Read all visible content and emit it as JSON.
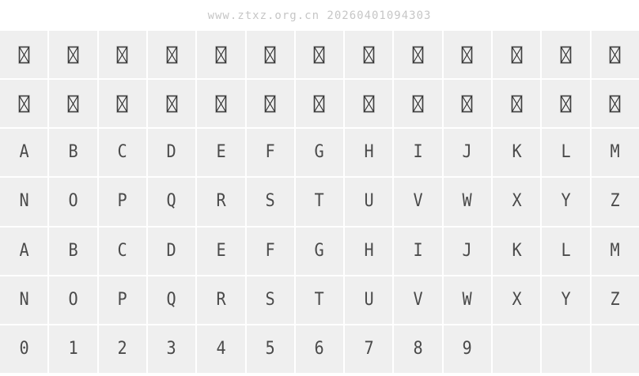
{
  "header": {
    "watermark": "www.ztxz.org.cn 20260401094303"
  },
  "colors": {
    "page_bg": "#ffffff",
    "cell_bg": "#efefef",
    "glyph": "#4a4a4a",
    "watermark": "#c6c6c6",
    "notdef_frame": "#8f8f8f",
    "notdef_cross": "#2b2b2b"
  },
  "grid": {
    "columns": 13,
    "row_count": 7,
    "rows": [
      {
        "name": "unsupported-glyphs-row-1",
        "cells": [
          "notdef",
          "notdef",
          "notdef",
          "notdef",
          "notdef",
          "notdef",
          "notdef",
          "notdef",
          "notdef",
          "notdef",
          "notdef",
          "notdef",
          "notdef"
        ]
      },
      {
        "name": "unsupported-glyphs-row-2",
        "cells": [
          "notdef",
          "notdef",
          "notdef",
          "notdef",
          "notdef",
          "notdef",
          "notdef",
          "notdef",
          "notdef",
          "notdef",
          "notdef",
          "notdef",
          "notdef"
        ]
      },
      {
        "name": "uppercase-A-M",
        "cells": [
          "A",
          "B",
          "C",
          "D",
          "E",
          "F",
          "G",
          "H",
          "I",
          "J",
          "K",
          "L",
          "M"
        ]
      },
      {
        "name": "uppercase-N-Z",
        "cells": [
          "N",
          "O",
          "P",
          "Q",
          "R",
          "S",
          "T",
          "U",
          "V",
          "W",
          "X",
          "Y",
          "Z"
        ]
      },
      {
        "name": "lowercase-a-m-shown-as-caps",
        "cells": [
          "A",
          "B",
          "C",
          "D",
          "E",
          "F",
          "G",
          "H",
          "I",
          "J",
          "K",
          "L",
          "M"
        ]
      },
      {
        "name": "lowercase-n-z-shown-as-caps",
        "cells": [
          "N",
          "O",
          "P",
          "Q",
          "R",
          "S",
          "T",
          "U",
          "V",
          "W",
          "X",
          "Y",
          "Z"
        ]
      },
      {
        "name": "digits-0-9",
        "cells": [
          "0",
          "1",
          "2",
          "3",
          "4",
          "5",
          "6",
          "7",
          "8",
          "9",
          "",
          "",
          ""
        ]
      }
    ]
  }
}
